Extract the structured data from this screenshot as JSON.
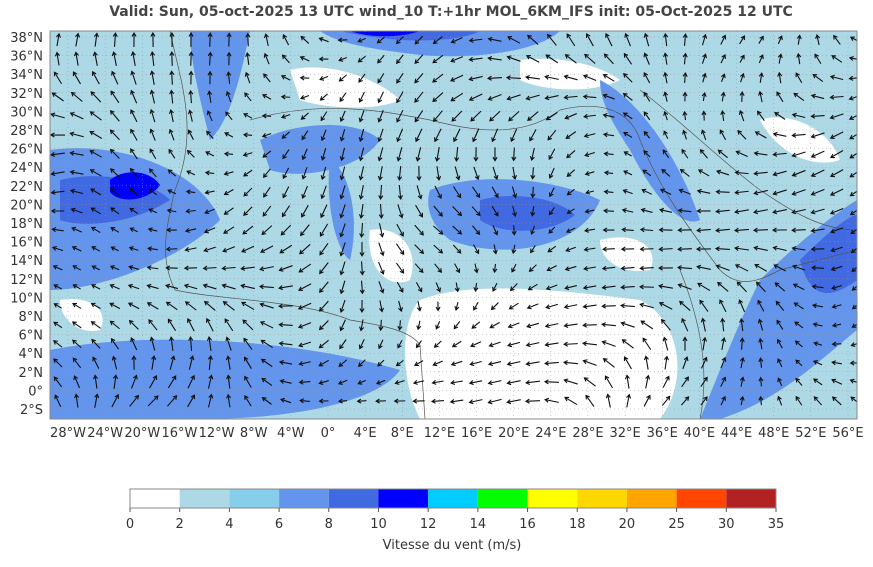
{
  "header": {
    "title": "Valid: Sun, 05-oct-2025   13 UTC   wind_10   T:+1hr   MOL_6KM_IFS   init: 05-Oct-2025    12 UTC"
  },
  "map": {
    "lat_labels": [
      "38°N",
      "36°N",
      "34°N",
      "32°N",
      "30°N",
      "28°N",
      "26°N",
      "24°N",
      "22°N",
      "20°N",
      "18°N",
      "16°N",
      "14°N",
      "12°N",
      "10°N",
      "8°N",
      "6°N",
      "4°N",
      "2°N",
      "0°",
      "2°S"
    ],
    "lon_labels": [
      "28°W",
      "24°W",
      "20°W",
      "16°W",
      "12°W",
      "8°W",
      "4°W",
      "0°",
      "4°E",
      "8°E",
      "12°E",
      "16°E",
      "20°E",
      "24°E",
      "28°E",
      "32°E",
      "36°E",
      "40°E",
      "44°E",
      "48°E",
      "52°E",
      "56°E"
    ]
  },
  "colorbar": {
    "ticks": [
      0,
      2,
      4,
      6,
      8,
      10,
      12,
      14,
      16,
      18,
      20,
      25,
      30,
      35
    ],
    "colors": [
      "#ffffff",
      "#add8e6",
      "#87ceeb",
      "#6495ed",
      "#4169e1",
      "#0000ff",
      "#00ccff",
      "#00ff00",
      "#ffff00",
      "#ffd700",
      "#ffa500",
      "#ff4500",
      "#b22222"
    ],
    "label": "Vitesse du vent (m/s)"
  }
}
